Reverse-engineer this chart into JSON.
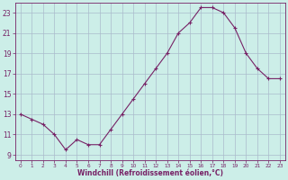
{
  "x": [
    0,
    1,
    2,
    3,
    4,
    5,
    6,
    7,
    8,
    9,
    10,
    11,
    12,
    13,
    14,
    15,
    16,
    17,
    18,
    19,
    20,
    21,
    22,
    23
  ],
  "y": [
    13.0,
    12.5,
    12.0,
    11.0,
    9.5,
    10.5,
    10.0,
    10.0,
    11.5,
    13.0,
    14.5,
    16.0,
    17.5,
    19.0,
    21.0,
    22.0,
    23.5,
    23.5,
    23.0,
    21.5,
    19.0,
    17.5,
    16.5,
    16.5
  ],
  "line_color": "#772266",
  "marker": "+",
  "marker_size": 3,
  "marker_lw": 0.8,
  "bg_color": "#cceee8",
  "grid_color": "#aabbcc",
  "xlabel": "Windchill (Refroidissement éolien,°C)",
  "xlabel_color": "#772266",
  "tick_color": "#772266",
  "ylim": [
    8.5,
    24.0
  ],
  "xlim": [
    -0.5,
    23.5
  ],
  "yticks": [
    9,
    11,
    13,
    15,
    17,
    19,
    21,
    23
  ],
  "xticks": [
    0,
    1,
    2,
    3,
    4,
    5,
    6,
    7,
    8,
    9,
    10,
    11,
    12,
    13,
    14,
    15,
    16,
    17,
    18,
    19,
    20,
    21,
    22,
    23
  ]
}
